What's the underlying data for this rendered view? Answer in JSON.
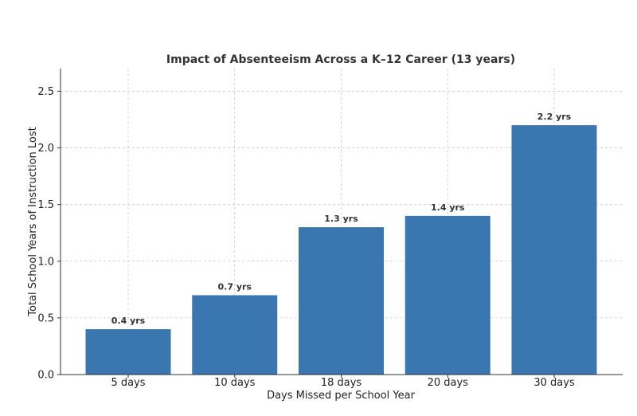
{
  "chart_data": {
    "type": "bar",
    "title": "Impact of Absenteeism Across a K–12 Career (13 years)",
    "xlabel": "Days Missed per School Year",
    "ylabel": "Total School Years of Instruction Lost",
    "categories": [
      "5 days",
      "10 days",
      "18 days",
      "20 days",
      "30 days"
    ],
    "values": [
      0.4,
      0.7,
      1.3,
      1.4,
      2.2
    ],
    "data_labels": [
      "0.4 yrs",
      "0.7 yrs",
      "1.3 yrs",
      "1.4 yrs",
      "2.2 yrs"
    ],
    "ylim": [
      0,
      2.7
    ],
    "yticks": [
      0.0,
      0.5,
      1.0,
      1.5,
      2.0,
      2.5
    ],
    "ytick_labels": [
      "0.0",
      "0.5",
      "1.0",
      "1.5",
      "2.0",
      "2.5"
    ],
    "grid": true,
    "bar_color": "#3a76af"
  }
}
